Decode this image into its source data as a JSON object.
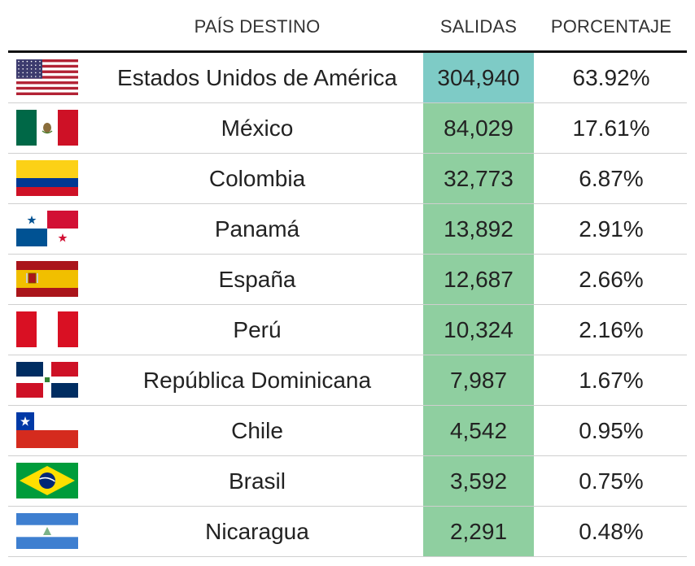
{
  "header": {
    "country": "PAÍS DESTINO",
    "salidas": "SALIDAS",
    "porcentaje": "PORCENTAJE"
  },
  "chart_data": {
    "type": "table",
    "columns": [
      "PAÍS DESTINO",
      "SALIDAS",
      "PORCENTAJE"
    ],
    "rows": [
      {
        "country": "Estados Unidos de América",
        "salidas": "304,940",
        "porcentaje": "63.92%",
        "value": 304940,
        "pct": 63.92,
        "flag": "flag-usa-icon"
      },
      {
        "country": "México",
        "salidas": "84,029",
        "porcentaje": "17.61%",
        "value": 84029,
        "pct": 17.61,
        "flag": "flag-mexico-icon"
      },
      {
        "country": "Colombia",
        "salidas": "32,773",
        "porcentaje": "6.87%",
        "value": 32773,
        "pct": 6.87,
        "flag": "flag-colombia-icon"
      },
      {
        "country": "Panamá",
        "salidas": "13,892",
        "porcentaje": "2.91%",
        "value": 13892,
        "pct": 2.91,
        "flag": "flag-panama-icon"
      },
      {
        "country": "España",
        "salidas": "12,687",
        "porcentaje": "2.66%",
        "value": 12687,
        "pct": 2.66,
        "flag": "flag-spain-icon"
      },
      {
        "country": "Perú",
        "salidas": "10,324",
        "porcentaje": "2.16%",
        "value": 10324,
        "pct": 2.16,
        "flag": "flag-peru-icon"
      },
      {
        "country": "República Dominicana",
        "salidas": "7,987",
        "porcentaje": "1.67%",
        "value": 7987,
        "pct": 1.67,
        "flag": "flag-dominican-republic-icon"
      },
      {
        "country": "Chile",
        "salidas": "4,542",
        "porcentaje": "0.95%",
        "value": 4542,
        "pct": 0.95,
        "flag": "flag-chile-icon"
      },
      {
        "country": "Brasil",
        "salidas": "3,592",
        "porcentaje": "0.75%",
        "value": 3592,
        "pct": 0.75,
        "flag": "flag-brazil-icon"
      },
      {
        "country": "Nicaragua",
        "salidas": "2,291",
        "porcentaje": "0.48%",
        "value": 2291,
        "pct": 0.48,
        "flag": "flag-nicaragua-icon"
      }
    ],
    "colors": {
      "top_cell": "#7ecbc6",
      "cell": "#8fcfa0"
    }
  }
}
